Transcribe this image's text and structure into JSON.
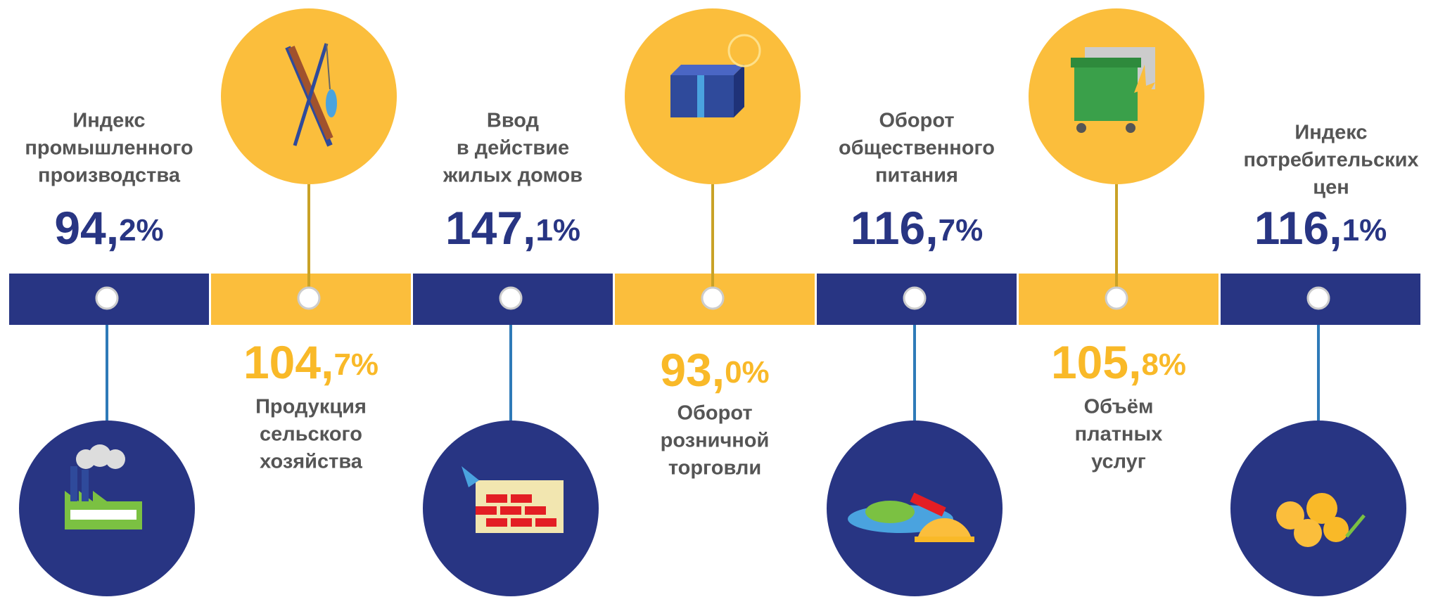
{
  "items": [
    {
      "title": [
        "Индекс",
        "промышленного",
        "производства"
      ],
      "value": "94,2%"
    },
    {
      "title": [
        "Продукция",
        "сельского",
        "хозяйства"
      ],
      "value": "104,7%"
    },
    {
      "title": [
        "Ввод",
        "в действие",
        "жилых домов"
      ],
      "value": "147,1%"
    },
    {
      "title": [
        "Оборот",
        "розничной",
        "торговли"
      ],
      "value": "93,0%"
    },
    {
      "title": [
        "Оборот",
        "общественного",
        "питания"
      ],
      "value": "116,7%"
    },
    {
      "title": [
        "Объём",
        "платных",
        "услуг"
      ],
      "value": "105,8%"
    },
    {
      "title": [
        "Индекс",
        "потребительских",
        "цен"
      ],
      "value": "116,1%"
    }
  ]
}
